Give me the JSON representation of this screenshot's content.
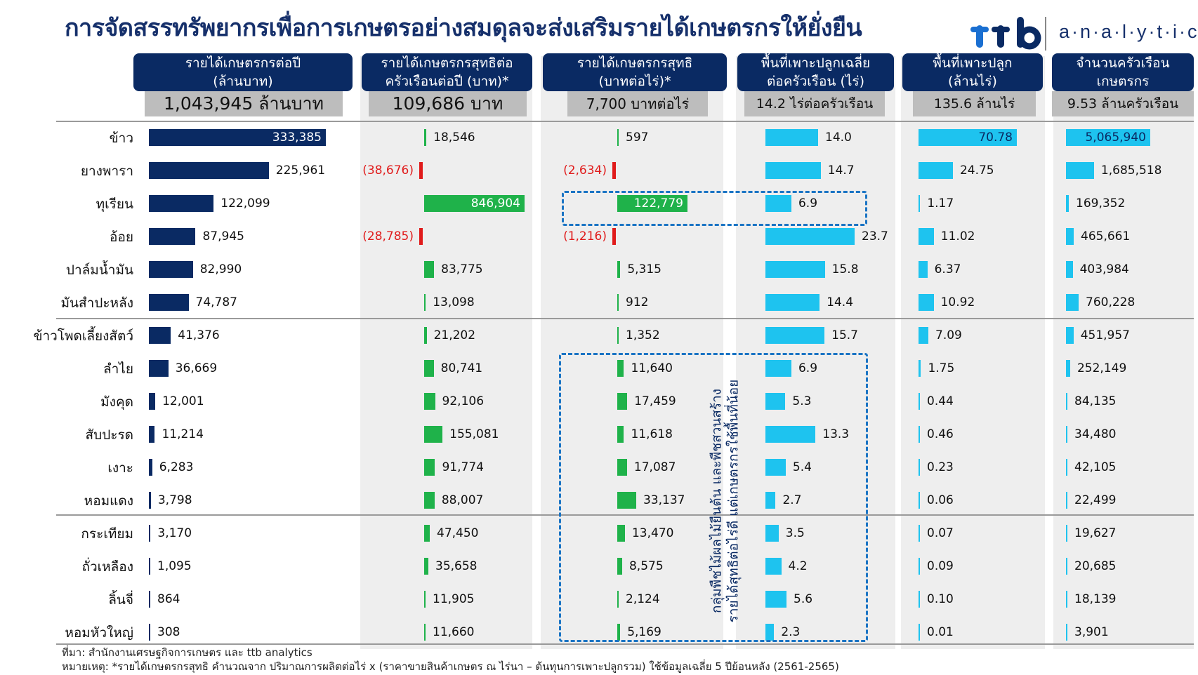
{
  "title": "การจัดสรรทรัพยากรเพื่อการเกษตรอย่างสมดุลจะส่งเสริมรายได้เกษตรกรให้ยั่งยืน",
  "logo": {
    "text": "a·n·a·l·y·t·i·c·s"
  },
  "colors": {
    "navy": "#0a2a63",
    "green": "#1fb24a",
    "cyan": "#1ec3ef",
    "negative": "#e01b1b",
    "dash": "#1a74c4",
    "title": "#16306b"
  },
  "annotation": "กลุ่มพืชไม้ผลไม้ยืนต้น และพืชสวนสร้าง\nรายได้สุทธิต่อไร่ดี แต่เกษตรกรใช้พื้นที่น้อย",
  "footnote": {
    "source": "ที่มา: สำนักงานเศรษฐกิจการเกษตร และ ttb analytics",
    "note": "หมายเหตุ: *รายได้เกษตรกรสุทธิ คำนวณจาก ปริมาณการผลิตต่อไร่ x (ราคาขายสินค้าเกษตร ณ ไร่นา – ต้นทุนการเพาะปลูกรวม) ใช้ข้อมูลเฉลี่ย 5 ปีย้อนหลัง (2561-2565)"
  },
  "chart_data": {
    "type": "bar",
    "orientation": "horizontal",
    "categories": [
      "ข้าว",
      "ยางพารา",
      "ทุเรียน",
      "อ้อย",
      "ปาล์มน้ำมัน",
      "มันสำปะหลัง",
      "ข้าวโพดเลี้ยงสัตว์",
      "ลำไย",
      "มังคุด",
      "สับปะรด",
      "เงาะ",
      "หอมแดง",
      "กระเทียม",
      "ถั่วเหลือง",
      "ลิ้นจี่",
      "หอมหัวใหญ่"
    ],
    "series": [
      {
        "name": "รายได้เกษตรกรต่อปี\n(ล้านบาท)",
        "total": "1,043,945 ล้านบาท",
        "values": [
          333385,
          225961,
          122099,
          87945,
          82990,
          74787,
          41376,
          36669,
          12001,
          11214,
          6283,
          3798,
          3170,
          1095,
          864,
          308
        ],
        "labels": [
          "333,385",
          "225,961",
          "122,099",
          "87,945",
          "82,990",
          "74,787",
          "41,376",
          "36,669",
          "12,001",
          "11,214",
          "6,283",
          "3,798",
          "3,170",
          "1,095",
          "864",
          "308"
        ]
      },
      {
        "name": "รายได้เกษตรกรสุทธิต่อ\nครัวเรือนต่อปี (บาท)*",
        "total": "109,686 บาท",
        "values": [
          18546,
          -38676,
          846904,
          -28785,
          83775,
          13098,
          21202,
          80741,
          92106,
          155081,
          91774,
          88007,
          47450,
          35658,
          11905,
          11660
        ],
        "labels": [
          "18,546",
          "(38,676)",
          "846,904",
          "(28,785)",
          "83,775",
          "13,098",
          "21,202",
          "80,741",
          "92,106",
          "155,081",
          "91,774",
          "88,007",
          "47,450",
          "35,658",
          "11,905",
          "11,660"
        ]
      },
      {
        "name": "รายได้เกษตรกรสุทธิ\n(บาทต่อไร่)*",
        "total": "7,700 บาทต่อไร่",
        "values": [
          597,
          -2634,
          122779,
          -1216,
          5315,
          912,
          1352,
          11640,
          17459,
          11618,
          17087,
          33137,
          13470,
          8575,
          2124,
          5169
        ],
        "labels": [
          "597",
          "(2,634)",
          "122,779",
          "(1,216)",
          "5,315",
          "912",
          "1,352",
          "11,640",
          "17,459",
          "11,618",
          "17,087",
          "33,137",
          "13,470",
          "8,575",
          "2,124",
          "5,169"
        ]
      },
      {
        "name": "พื้นที่เพาะปลูกเฉลี่ย\nต่อครัวเรือน (ไร่)",
        "total": "14.2 ไร่ต่อครัวเรือน",
        "values": [
          14.0,
          14.7,
          6.9,
          23.7,
          15.8,
          14.4,
          15.7,
          6.9,
          5.3,
          13.3,
          5.4,
          2.7,
          3.5,
          4.2,
          5.6,
          2.3
        ],
        "labels": [
          "14.0",
          "14.7",
          "6.9",
          "23.7",
          "15.8",
          "14.4",
          "15.7",
          "6.9",
          "5.3",
          "13.3",
          "5.4",
          "2.7",
          "3.5",
          "4.2",
          "5.6",
          "2.3"
        ]
      },
      {
        "name": "พื้นที่เพาะปลูก\n(ล้านไร่)",
        "total": "135.6 ล้านไร่",
        "values": [
          70.78,
          24.75,
          1.17,
          11.02,
          6.37,
          10.92,
          7.09,
          1.75,
          0.44,
          0.46,
          0.23,
          0.06,
          0.07,
          0.09,
          0.1,
          0.01
        ],
        "labels": [
          "70.78",
          "24.75",
          "1.17",
          "11.02",
          "6.37",
          "10.92",
          "7.09",
          "1.75",
          "0.44",
          "0.46",
          "0.23",
          "0.06",
          "0.07",
          "0.09",
          "0.10",
          "0.01"
        ]
      },
      {
        "name": "จำนวนครัวเรือน\nเกษตรกร",
        "total": "9.53 ล้านครัวเรือน",
        "values": [
          5065940,
          1685518,
          169352,
          465661,
          403984,
          760228,
          451957,
          252149,
          84135,
          34480,
          42105,
          22499,
          19627,
          20685,
          18139,
          3901
        ],
        "labels": [
          "5,065,940",
          "1,685,518",
          "169,352",
          "465,661",
          "403,984",
          "760,228",
          "451,957",
          "252,149",
          "84,135",
          "34,480",
          "42,105",
          "22,499",
          "19,627",
          "20,685",
          "18,139",
          "3,901"
        ]
      }
    ]
  }
}
